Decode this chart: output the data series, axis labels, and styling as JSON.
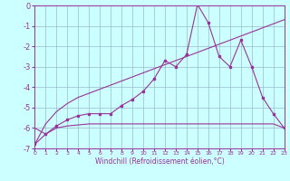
{
  "x": [
    0,
    1,
    2,
    3,
    4,
    5,
    6,
    7,
    8,
    9,
    10,
    11,
    12,
    13,
    14,
    15,
    16,
    17,
    18,
    19,
    20,
    21,
    22,
    23
  ],
  "line1": [
    -6.8,
    -6.3,
    -5.9,
    -5.6,
    -5.4,
    -5.3,
    -5.3,
    -5.3,
    -4.9,
    -4.6,
    -4.2,
    -3.6,
    -2.7,
    -3.0,
    -2.4,
    0.05,
    -0.85,
    -2.5,
    -3.0,
    -1.7,
    -3.0,
    -4.5,
    -5.3,
    -6.0
  ],
  "line2": [
    -6.0,
    -6.3,
    -6.0,
    -5.9,
    -5.85,
    -5.8,
    -5.8,
    -5.8,
    -5.8,
    -5.8,
    -5.8,
    -5.8,
    -5.8,
    -5.8,
    -5.8,
    -5.8,
    -5.8,
    -5.8,
    -5.8,
    -5.8,
    -5.8,
    -5.8,
    -5.8,
    -6.0
  ],
  "line3": [
    -6.8,
    -5.8,
    -5.2,
    -4.8,
    -4.5,
    -4.3,
    -4.1,
    -3.9,
    -3.7,
    -3.5,
    -3.3,
    -3.1,
    -2.9,
    -2.7,
    -2.5,
    -2.3,
    -2.1,
    -1.9,
    -1.7,
    -1.5,
    -1.3,
    -1.1,
    -0.9,
    -0.7
  ],
  "color": "#993399",
  "bg_color": "#ccffff",
  "grid_color": "#99bbcc",
  "xlim": [
    0,
    23
  ],
  "ylim": [
    -7,
    0
  ],
  "yticks": [
    0,
    -1,
    -2,
    -3,
    -4,
    -5,
    -6,
    -7
  ],
  "xticks": [
    0,
    1,
    2,
    3,
    4,
    5,
    6,
    7,
    8,
    9,
    10,
    11,
    12,
    13,
    14,
    15,
    16,
    17,
    18,
    19,
    20,
    21,
    22,
    23
  ],
  "xlabel": "Windchill (Refroidissement éolien,°C)"
}
